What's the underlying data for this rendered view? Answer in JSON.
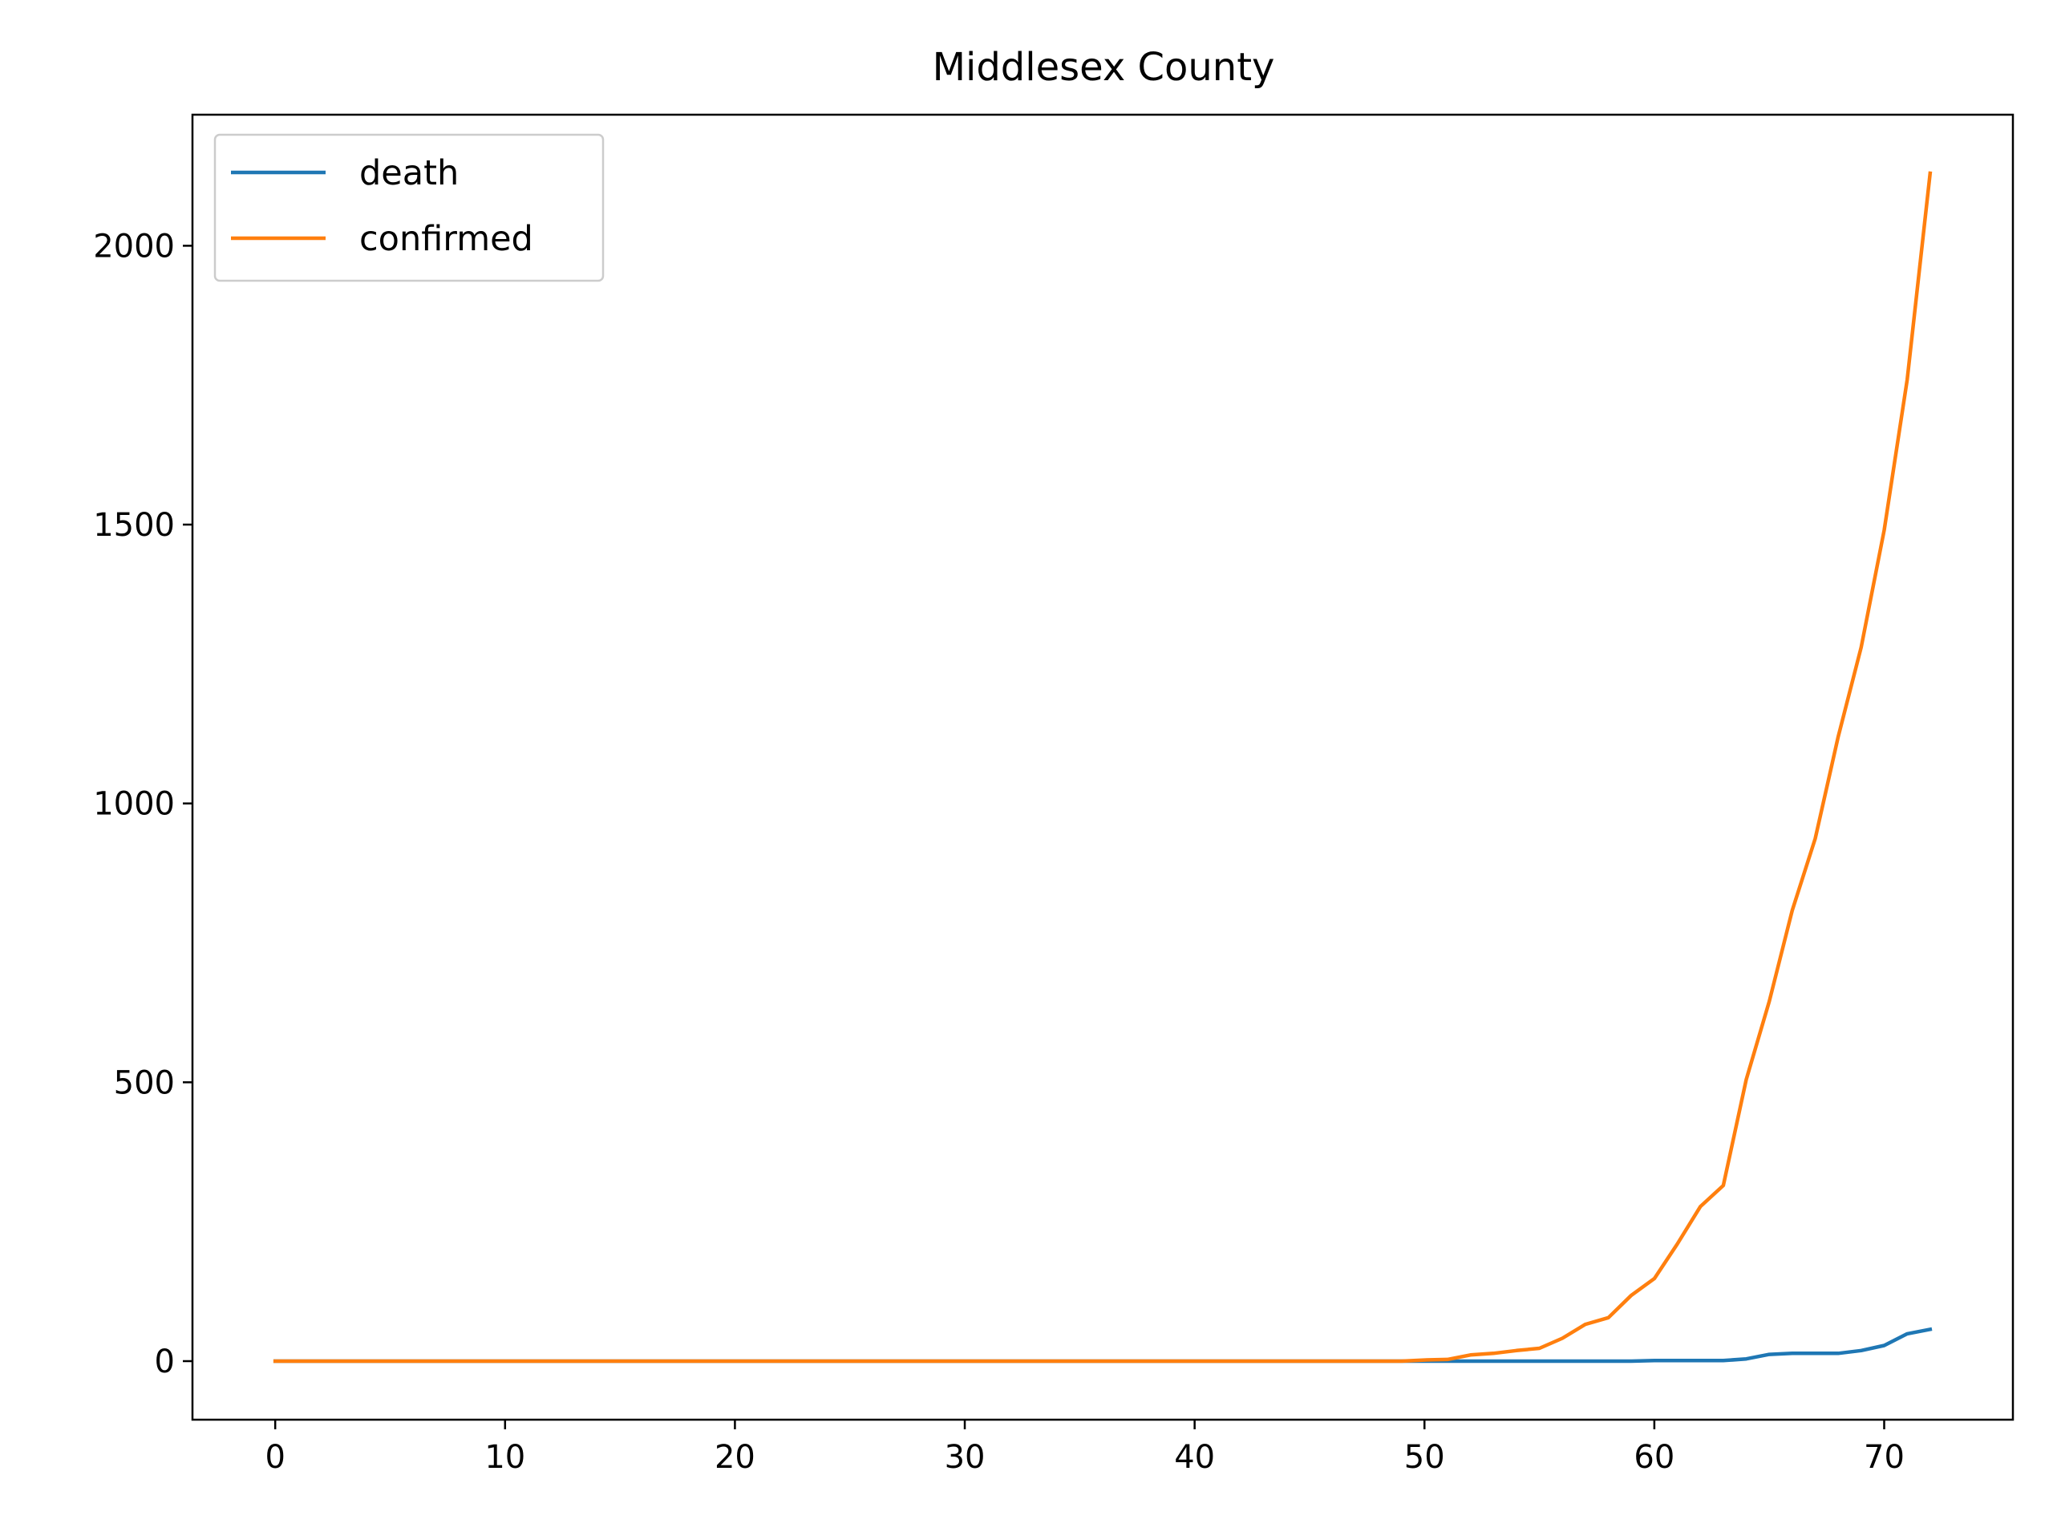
{
  "chart_data": {
    "type": "line",
    "title": "Middlesex County",
    "xlabel": "",
    "ylabel": "",
    "xlim": [
      -3.6,
      75.6
    ],
    "ylim": [
      -105,
      2235
    ],
    "xticks": [
      0,
      10,
      20,
      30,
      40,
      50,
      60,
      70
    ],
    "yticks": [
      0,
      500,
      1000,
      1500,
      2000
    ],
    "grid": false,
    "legend_position": "upper left",
    "series": [
      {
        "name": "death",
        "color": "#1f77b4",
        "x": [
          0,
          59,
          60,
          63,
          64,
          65,
          66,
          67,
          68,
          69,
          70,
          71,
          72
        ],
        "y": [
          0,
          0,
          1,
          1,
          4,
          12,
          14,
          14,
          14,
          19,
          28,
          49,
          57
        ]
      },
      {
        "name": "confirmed",
        "color": "#ff7f0e",
        "x": [
          0,
          49,
          50,
          51,
          52,
          53,
          54,
          55,
          56,
          57,
          58,
          59,
          60,
          61,
          62,
          63,
          64,
          65,
          66,
          67,
          68,
          69,
          70,
          71,
          72
        ],
        "y": [
          0,
          0,
          2,
          3,
          11,
          14,
          19,
          23,
          41,
          66,
          78,
          118,
          148,
          210,
          277,
          315,
          505,
          645,
          808,
          937,
          1120,
          1280,
          1490,
          1760,
          2130
        ]
      }
    ]
  }
}
